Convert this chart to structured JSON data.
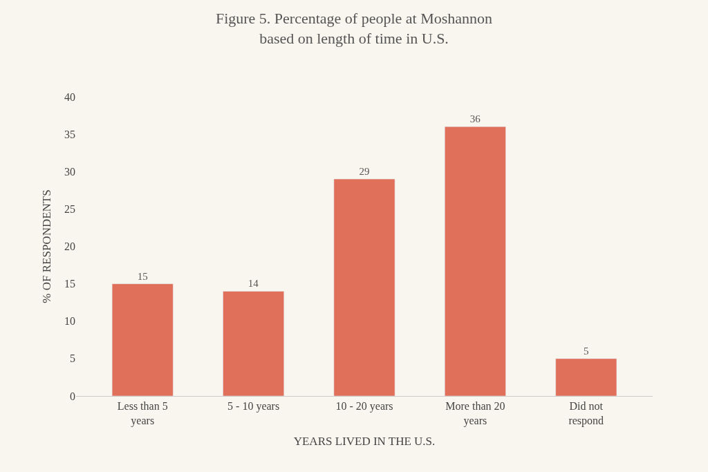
{
  "chart_data": {
    "type": "bar",
    "title": "Figure 5. Percentage of people at Moshannon based on length of time in U.S.",
    "xlabel": "YEARS LIVED IN THE U.S.",
    "ylabel": "% OF RESPONDENTS",
    "categories": [
      "Less than 5 years",
      "5 - 10 years",
      "10 - 20 years",
      "More than 20 years",
      "Did not respond"
    ],
    "values": [
      15,
      14,
      29,
      36,
      5
    ],
    "color": "#e0705a",
    "ylim": [
      0,
      40
    ],
    "yticks": [
      0,
      5,
      10,
      15,
      20,
      25,
      30,
      35,
      40
    ],
    "grid": false,
    "legend": false,
    "data_labels": true
  }
}
